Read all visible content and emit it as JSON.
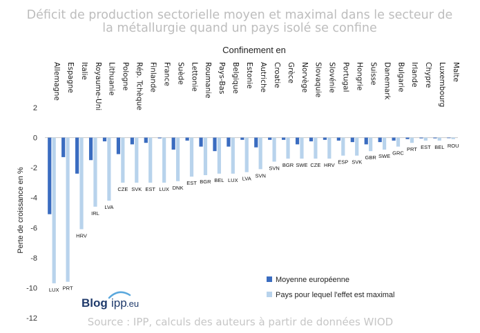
{
  "colors": {
    "average": "#3a6cc0",
    "max": "#b8d3ec",
    "title": "#bdbdbd",
    "source": "#c6c6c6",
    "logo": "#1f3a6b",
    "logo_accent": "#5aa8dd"
  },
  "logo": {
    "blog": "Blog",
    "ipp": "ipp",
    "domain": ".eu"
  },
  "source": "Source : IPP, calculs des auteurs à partir de données WIOD",
  "chart_data": {
    "type": "bar",
    "title_line1": "Déficit de production sectorielle moyen et maximal dans le secteur de",
    "title_line2": "la métallurgie quand un pays isolé se confine",
    "subtitle": "Confinement en",
    "ylabel": "Perte de croissance en %",
    "ylim": [
      -12,
      2
    ],
    "yticks": [
      2,
      0,
      -2,
      -4,
      -6,
      -8,
      -10,
      -12
    ],
    "legend_position": "bottom-right",
    "categories": [
      "Allemagne",
      "Espagne",
      "Italie",
      "Royaume-Uni",
      "Lithuanie",
      "Pologne",
      "Rép. Tchèque",
      "Finlande",
      "France",
      "Suède",
      "Lettonie",
      "Roumanie",
      "Pays-Bas",
      "Belgique",
      "Estonie",
      "Autriche",
      "Croatie",
      "Grèce",
      "Norvège",
      "Slovaquie",
      "Slovénie",
      "Portugal",
      "Hongrie",
      "Suisse",
      "Danemark",
      "Bulgarie",
      "Irlande",
      "Chypre",
      "Luxembourg",
      "Malte"
    ],
    "series": [
      {
        "name": "Moyenne européenne",
        "values": [
          -5.1,
          -1.3,
          -2.4,
          -1.5,
          -0.25,
          -1.1,
          -0.45,
          -0.35,
          -0.05,
          -0.8,
          -0.2,
          -0.6,
          -0.9,
          -0.6,
          -0.15,
          -0.65,
          -0.15,
          -0.15,
          -0.45,
          -0.25,
          -0.15,
          -0.2,
          -0.3,
          -0.45,
          -0.3,
          -0.2,
          -0.1,
          -0.05,
          -0.05,
          -0.03
        ]
      },
      {
        "name": "Pays pour lequel l'effet est maximal",
        "values": [
          -9.7,
          -9.6,
          -6.1,
          -4.6,
          -4.2,
          -3.0,
          -3.0,
          -3.0,
          -3.0,
          -2.9,
          -2.6,
          -2.5,
          -2.4,
          -2.4,
          -2.3,
          -2.1,
          -1.6,
          -1.4,
          -1.4,
          -1.4,
          -1.4,
          -1.2,
          -1.2,
          -0.9,
          -0.8,
          -0.6,
          -0.35,
          -0.2,
          -0.2,
          -0.1
        ],
        "labels": [
          "LUX",
          "PRT",
          "HRV",
          "IRL",
          "LVA",
          "CZE",
          "SVK",
          "EST",
          "LUX",
          "DNK",
          "EST",
          "BGR",
          "BEL",
          "LUX",
          "LVA",
          "SVN",
          "SVN",
          "BGR",
          "SWE",
          "CZE",
          "HRV",
          "ESP",
          "SVK",
          "GBR",
          "SWE",
          "GRC",
          "PRT",
          "EST",
          "BEL",
          "ROU"
        ]
      }
    ]
  }
}
